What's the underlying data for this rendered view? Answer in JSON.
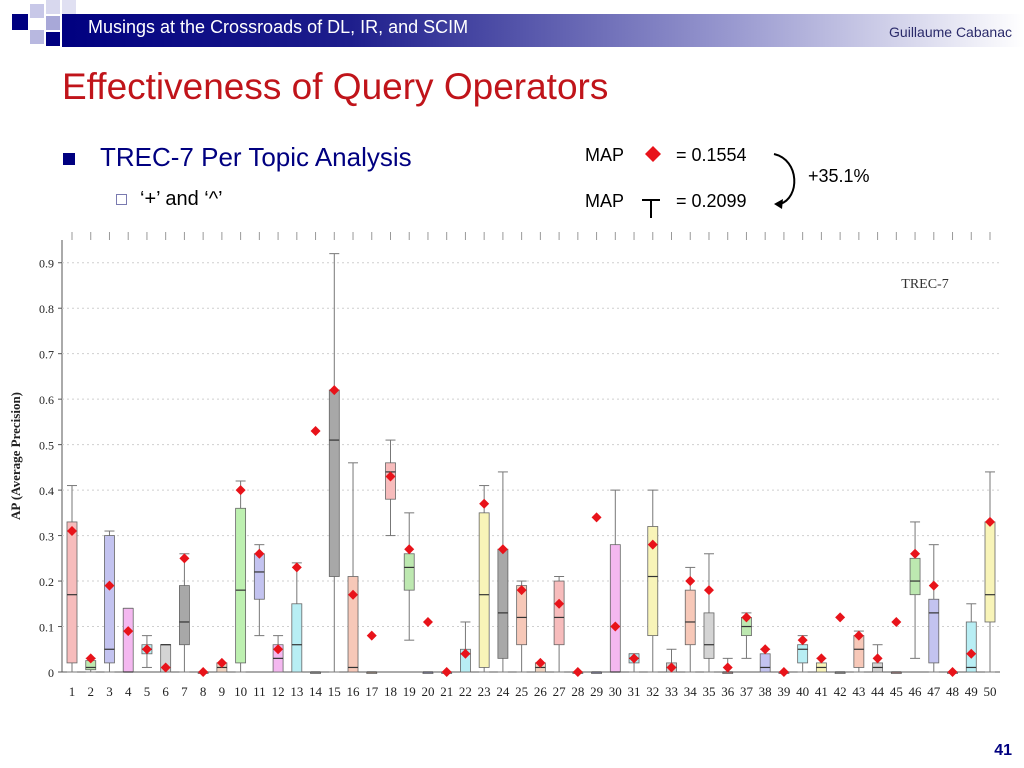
{
  "header": {
    "title": "Musings at the Crossroads of DL, IR, and SCIM",
    "author": "Guillaume Cabanac"
  },
  "slide": {
    "title": "Effectiveness of Query Operators",
    "bullet": "TREC-7 Per Topic Analysis",
    "sub_bullet": "‘+’ and ‘^’",
    "page_number": "41"
  },
  "map_legend": {
    "row1_label": "MAP",
    "row1_value": "= 0.1554",
    "row2_label": "MAP",
    "row2_value": "= 0.2099",
    "improvement": "+35.1%"
  },
  "colors": {
    "header_dark": "#000080",
    "title_red": "#c0141a",
    "bullet_blue": "#000080",
    "mean_marker": "#e8131a"
  },
  "chart_data": {
    "type": "boxplot",
    "title": "TREC-7",
    "xlabel": "",
    "ylabel": "AP (Average Precision)",
    "ylim": [
      0,
      0.95
    ],
    "yticks": [
      0,
      0.1,
      0.2,
      0.3,
      0.4,
      0.5,
      0.6,
      0.7,
      0.8,
      0.9
    ],
    "grid": true,
    "categories": [
      "1",
      "2",
      "3",
      "4",
      "5",
      "6",
      "7",
      "8",
      "9",
      "10",
      "11",
      "12",
      "13",
      "14",
      "15",
      "16",
      "17",
      "18",
      "19",
      "20",
      "21",
      "22",
      "23",
      "24",
      "25",
      "26",
      "27",
      "28",
      "29",
      "30",
      "31",
      "32",
      "33",
      "34",
      "35",
      "36",
      "37",
      "38",
      "39",
      "40",
      "41",
      "42",
      "43",
      "44",
      "45",
      "46",
      "47",
      "48",
      "49",
      "50"
    ],
    "boxes": [
      {
        "topic": "1",
        "whisker_low": 0,
        "q1": 0.02,
        "median": 0.17,
        "q3": 0.33,
        "whisker_high": 0.41,
        "mean": 0.31,
        "color": "#f7bcbc"
      },
      {
        "topic": "2",
        "whisker_low": 0,
        "q1": 0.005,
        "median": 0.01,
        "q3": 0.025,
        "whisker_high": 0.03,
        "mean": 0.03,
        "color": "#bde8b0"
      },
      {
        "topic": "3",
        "whisker_low": 0,
        "q1": 0.02,
        "median": 0.05,
        "q3": 0.3,
        "whisker_high": 0.31,
        "mean": 0.19,
        "color": "#c3c3f0"
      },
      {
        "topic": "4",
        "whisker_low": 0,
        "q1": 0.0,
        "median": 0.0,
        "q3": 0.14,
        "whisker_high": 0.14,
        "mean": 0.09,
        "color": "#f4b8f0"
      },
      {
        "topic": "5",
        "whisker_low": 0.01,
        "q1": 0.04,
        "median": 0.05,
        "q3": 0.06,
        "whisker_high": 0.08,
        "mean": 0.05,
        "color": "#b8eef4"
      },
      {
        "topic": "6",
        "whisker_low": 0,
        "q1": 0.0,
        "median": 0.06,
        "q3": 0.06,
        "whisker_high": 0.06,
        "mean": 0.01,
        "color": "#d4d4d4"
      },
      {
        "topic": "7",
        "whisker_low": 0,
        "q1": 0.06,
        "median": 0.11,
        "q3": 0.19,
        "whisker_high": 0.26,
        "mean": 0.25,
        "color": "#a8a8a8"
      },
      {
        "topic": "8",
        "whisker_low": 0,
        "q1": 0,
        "median": 0,
        "q3": 0,
        "whisker_high": 0,
        "mean": 0.0,
        "color": "#f7bcbc"
      },
      {
        "topic": "9",
        "whisker_low": 0,
        "q1": 0.0,
        "median": 0.01,
        "q3": 0.02,
        "whisker_high": 0.02,
        "mean": 0.02,
        "color": "#f0d4c0"
      },
      {
        "topic": "10",
        "whisker_low": 0,
        "q1": 0.02,
        "median": 0.18,
        "q3": 0.36,
        "whisker_high": 0.42,
        "mean": 0.4,
        "color": "#bdf0b0"
      },
      {
        "topic": "11",
        "whisker_low": 0.08,
        "q1": 0.16,
        "median": 0.22,
        "q3": 0.26,
        "whisker_high": 0.28,
        "mean": 0.26,
        "color": "#c3c3f0"
      },
      {
        "topic": "12",
        "whisker_low": 0,
        "q1": 0.0,
        "median": 0.03,
        "q3": 0.06,
        "whisker_high": 0.08,
        "mean": 0.05,
        "color": "#f4b8f0"
      },
      {
        "topic": "13",
        "whisker_low": 0,
        "q1": 0.0,
        "median": 0.06,
        "q3": 0.15,
        "whisker_high": 0.24,
        "mean": 0.23,
        "color": "#b8eef4"
      },
      {
        "topic": "14",
        "whisker_low": 0,
        "q1": 0,
        "median": 0,
        "q3": 0,
        "whisker_high": 0,
        "mean": 0.53,
        "color": "#d4d4d4"
      },
      {
        "topic": "15",
        "whisker_low": 0,
        "q1": 0.21,
        "median": 0.51,
        "q3": 0.62,
        "whisker_high": 0.92,
        "mean": 0.62,
        "color": "#a8a8a8"
      },
      {
        "topic": "16",
        "whisker_low": 0,
        "q1": 0.0,
        "median": 0.01,
        "q3": 0.21,
        "whisker_high": 0.46,
        "mean": 0.17,
        "color": "#f7c8b8"
      },
      {
        "topic": "17",
        "whisker_low": 0,
        "q1": 0,
        "median": 0,
        "q3": 0,
        "whisker_high": 0,
        "mean": 0.08,
        "color": "#f0d4c0"
      },
      {
        "topic": "18",
        "whisker_low": 0.3,
        "q1": 0.38,
        "median": 0.44,
        "q3": 0.46,
        "whisker_high": 0.51,
        "mean": 0.43,
        "color": "#f7bcbc"
      },
      {
        "topic": "19",
        "whisker_low": 0.07,
        "q1": 0.18,
        "median": 0.23,
        "q3": 0.26,
        "whisker_high": 0.35,
        "mean": 0.27,
        "color": "#bde8b0"
      },
      {
        "topic": "20",
        "whisker_low": 0,
        "q1": 0,
        "median": 0,
        "q3": 0,
        "whisker_high": 0,
        "mean": 0.11,
        "color": "#c3c3f0"
      },
      {
        "topic": "21",
        "whisker_low": 0,
        "q1": 0,
        "median": 0,
        "q3": 0,
        "whisker_high": 0,
        "mean": 0.0,
        "color": "#f4b8f0"
      },
      {
        "topic": "22",
        "whisker_low": 0,
        "q1": 0.0,
        "median": 0.04,
        "q3": 0.05,
        "whisker_high": 0.11,
        "mean": 0.04,
        "color": "#b8eef4"
      },
      {
        "topic": "23",
        "whisker_low": 0,
        "q1": 0.01,
        "median": 0.17,
        "q3": 0.35,
        "whisker_high": 0.41,
        "mean": 0.37,
        "color": "#f8f4b8"
      },
      {
        "topic": "24",
        "whisker_low": 0,
        "q1": 0.03,
        "median": 0.13,
        "q3": 0.27,
        "whisker_high": 0.44,
        "mean": 0.27,
        "color": "#a8a8a8"
      },
      {
        "topic": "25",
        "whisker_low": 0,
        "q1": 0.06,
        "median": 0.12,
        "q3": 0.19,
        "whisker_high": 0.2,
        "mean": 0.18,
        "color": "#f7c8b8"
      },
      {
        "topic": "26",
        "whisker_low": 0,
        "q1": 0.0,
        "median": 0.01,
        "q3": 0.02,
        "whisker_high": 0.02,
        "mean": 0.02,
        "color": "#f0d4c0"
      },
      {
        "topic": "27",
        "whisker_low": 0,
        "q1": 0.06,
        "median": 0.12,
        "q3": 0.2,
        "whisker_high": 0.21,
        "mean": 0.15,
        "color": "#f7bcbc"
      },
      {
        "topic": "28",
        "whisker_low": 0,
        "q1": 0,
        "median": 0,
        "q3": 0,
        "whisker_high": 0,
        "mean": 0.0,
        "color": "#bde8b0"
      },
      {
        "topic": "29",
        "whisker_low": 0,
        "q1": 0,
        "median": 0,
        "q3": 0,
        "whisker_high": 0,
        "mean": 0.34,
        "color": "#c3c3f0"
      },
      {
        "topic": "30",
        "whisker_low": 0,
        "q1": 0.0,
        "median": 0.0,
        "q3": 0.28,
        "whisker_high": 0.4,
        "mean": 0.1,
        "color": "#f4b8f0"
      },
      {
        "topic": "31",
        "whisker_low": 0,
        "q1": 0.02,
        "median": 0.03,
        "q3": 0.04,
        "whisker_high": 0.04,
        "mean": 0.03,
        "color": "#b8eef4"
      },
      {
        "topic": "32",
        "whisker_low": 0,
        "q1": 0.08,
        "median": 0.21,
        "q3": 0.32,
        "whisker_high": 0.4,
        "mean": 0.28,
        "color": "#f8f4b8"
      },
      {
        "topic": "33",
        "whisker_low": 0,
        "q1": 0.0,
        "median": 0.01,
        "q3": 0.02,
        "whisker_high": 0.05,
        "mean": 0.01,
        "color": "#d4d4d4"
      },
      {
        "topic": "34",
        "whisker_low": 0,
        "q1": 0.06,
        "median": 0.11,
        "q3": 0.18,
        "whisker_high": 0.23,
        "mean": 0.2,
        "color": "#f7c8b8"
      },
      {
        "topic": "35",
        "whisker_low": 0,
        "q1": 0.03,
        "median": 0.06,
        "q3": 0.13,
        "whisker_high": 0.26,
        "mean": 0.18,
        "color": "#d4d4d4"
      },
      {
        "topic": "36",
        "whisker_low": 0,
        "q1": 0,
        "median": 0,
        "q3": 0.0,
        "whisker_high": 0.03,
        "mean": 0.01,
        "color": "#f7bcbc"
      },
      {
        "topic": "37",
        "whisker_low": 0.03,
        "q1": 0.08,
        "median": 0.1,
        "q3": 0.12,
        "whisker_high": 0.13,
        "mean": 0.12,
        "color": "#bde8b0"
      },
      {
        "topic": "38",
        "whisker_low": 0,
        "q1": 0.0,
        "median": 0.01,
        "q3": 0.04,
        "whisker_high": 0.05,
        "mean": 0.05,
        "color": "#c3c3f0"
      },
      {
        "topic": "39",
        "whisker_low": 0,
        "q1": 0,
        "median": 0,
        "q3": 0,
        "whisker_high": 0,
        "mean": 0.0,
        "color": "#f4b8f0"
      },
      {
        "topic": "40",
        "whisker_low": 0,
        "q1": 0.02,
        "median": 0.05,
        "q3": 0.06,
        "whisker_high": 0.08,
        "mean": 0.07,
        "color": "#b8eef4"
      },
      {
        "topic": "41",
        "whisker_low": 0,
        "q1": 0.0,
        "median": 0.01,
        "q3": 0.02,
        "whisker_high": 0.03,
        "mean": 0.03,
        "color": "#f8f4b8"
      },
      {
        "topic": "42",
        "whisker_low": 0,
        "q1": 0,
        "median": 0,
        "q3": 0,
        "whisker_high": 0,
        "mean": 0.12,
        "color": "#d4d4d4"
      },
      {
        "topic": "43",
        "whisker_low": 0,
        "q1": 0.01,
        "median": 0.05,
        "q3": 0.08,
        "whisker_high": 0.09,
        "mean": 0.08,
        "color": "#f7c8b8"
      },
      {
        "topic": "44",
        "whisker_low": 0,
        "q1": 0.0,
        "median": 0.01,
        "q3": 0.02,
        "whisker_high": 0.06,
        "mean": 0.03,
        "color": "#d4d4d4"
      },
      {
        "topic": "45",
        "whisker_low": 0,
        "q1": 0,
        "median": 0,
        "q3": 0,
        "whisker_high": 0,
        "mean": 0.11,
        "color": "#f7bcbc"
      },
      {
        "topic": "46",
        "whisker_low": 0.03,
        "q1": 0.17,
        "median": 0.2,
        "q3": 0.25,
        "whisker_high": 0.33,
        "mean": 0.26,
        "color": "#bde8b0"
      },
      {
        "topic": "47",
        "whisker_low": 0,
        "q1": 0.02,
        "median": 0.13,
        "q3": 0.16,
        "whisker_high": 0.28,
        "mean": 0.19,
        "color": "#c3c3f0"
      },
      {
        "topic": "48",
        "whisker_low": 0,
        "q1": 0,
        "median": 0,
        "q3": 0,
        "whisker_high": 0,
        "mean": 0.0,
        "color": "#f4b8f0"
      },
      {
        "topic": "49",
        "whisker_low": 0,
        "q1": 0.0,
        "median": 0.01,
        "q3": 0.11,
        "whisker_high": 0.15,
        "mean": 0.04,
        "color": "#b8eef4"
      },
      {
        "topic": "50",
        "whisker_low": 0,
        "q1": 0.11,
        "median": 0.17,
        "q3": 0.33,
        "whisker_high": 0.44,
        "mean": 0.33,
        "color": "#f8f4b8"
      }
    ]
  }
}
